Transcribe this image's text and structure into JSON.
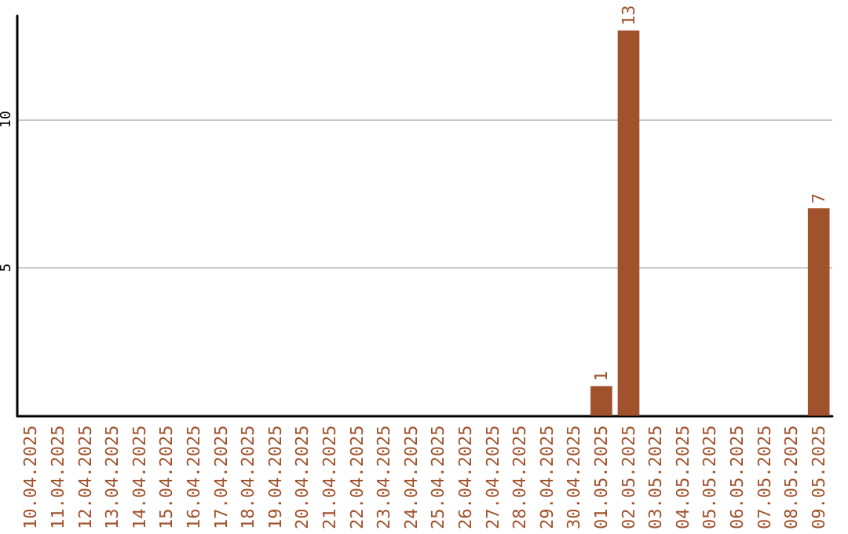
{
  "chart_data": {
    "type": "bar",
    "categories": [
      "10.04.2025",
      "11.04.2025",
      "12.04.2025",
      "13.04.2025",
      "14.04.2025",
      "15.04.2025",
      "16.04.2025",
      "17.04.2025",
      "18.04.2025",
      "19.04.2025",
      "20.04.2025",
      "21.04.2025",
      "22.04.2025",
      "23.04.2025",
      "24.04.2025",
      "25.04.2025",
      "26.04.2025",
      "27.04.2025",
      "28.04.2025",
      "29.04.2025",
      "30.04.2025",
      "01.05.2025",
      "02.05.2025",
      "03.05.2025",
      "04.05.2025",
      "05.05.2025",
      "06.05.2025",
      "07.05.2025",
      "08.05.2025",
      "09.05.2025"
    ],
    "values": [
      0,
      0,
      0,
      0,
      0,
      0,
      0,
      0,
      0,
      0,
      0,
      0,
      0,
      0,
      0,
      0,
      0,
      0,
      0,
      0,
      0,
      1,
      13,
      0,
      0,
      0,
      0,
      0,
      0,
      7
    ],
    "value_labels": [
      null,
      null,
      null,
      null,
      null,
      null,
      null,
      null,
      null,
      null,
      null,
      null,
      null,
      null,
      null,
      null,
      null,
      null,
      null,
      null,
      null,
      "1",
      "13",
      null,
      null,
      null,
      null,
      null,
      null,
      "7"
    ],
    "color": "#a0522d",
    "ylim": [
      0,
      13.5
    ],
    "yticks": [
      5,
      10
    ],
    "grid": "y"
  }
}
